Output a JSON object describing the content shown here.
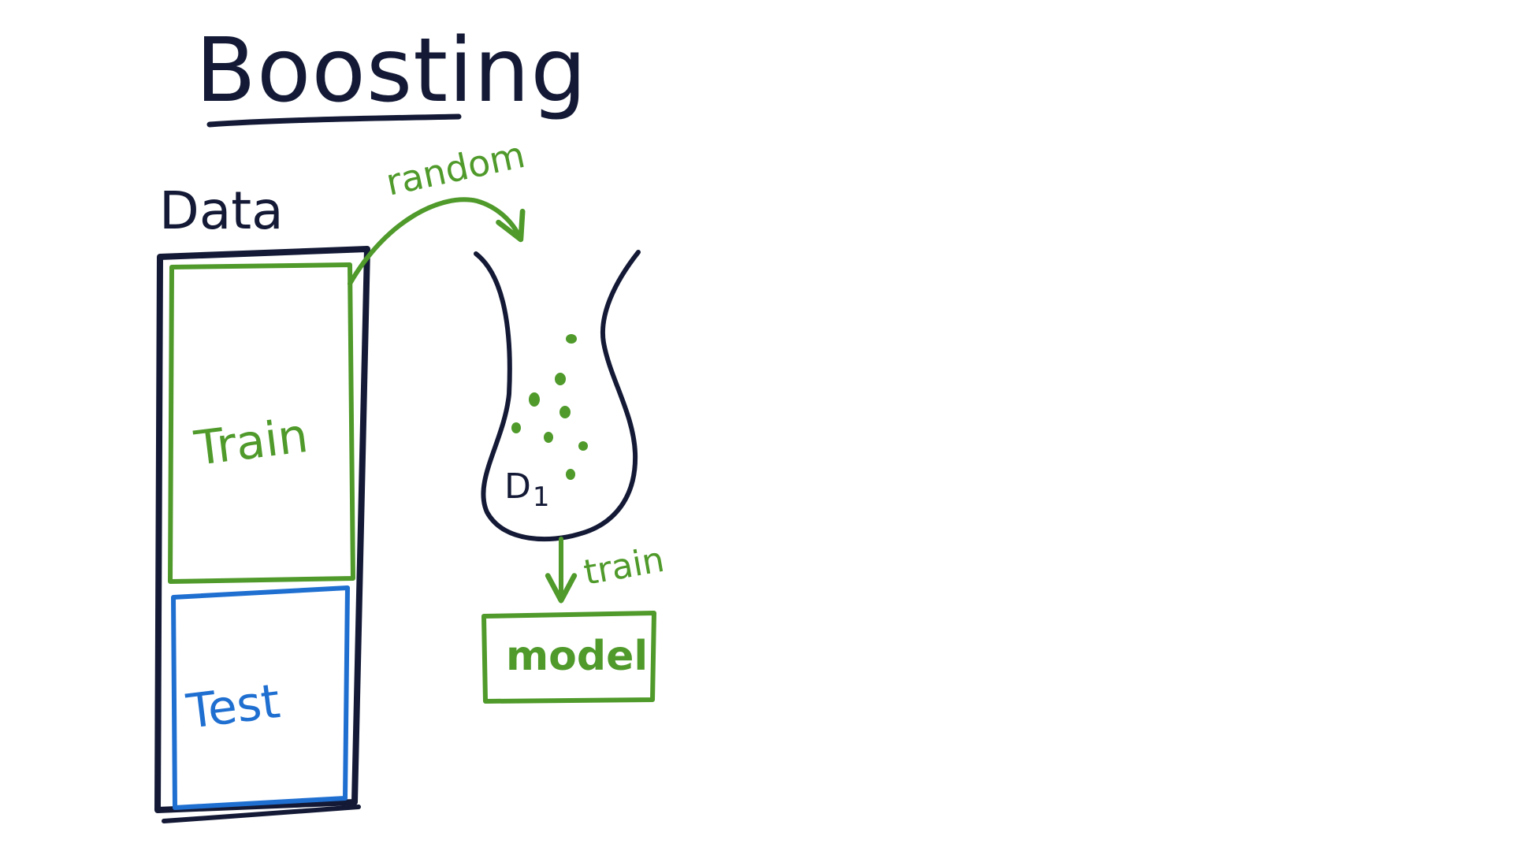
{
  "title": "Boosting",
  "data_label": "Data",
  "train_label": "Train",
  "test_label": "Test",
  "random_label": "random",
  "dist_label": "D",
  "dist_subscript": "1",
  "train_arrow_label": "train",
  "model_label": "model",
  "colors": {
    "ink": "#141a36",
    "green": "#4f9a2a",
    "blue": "#1f6fd1",
    "background": "#ffffff"
  }
}
